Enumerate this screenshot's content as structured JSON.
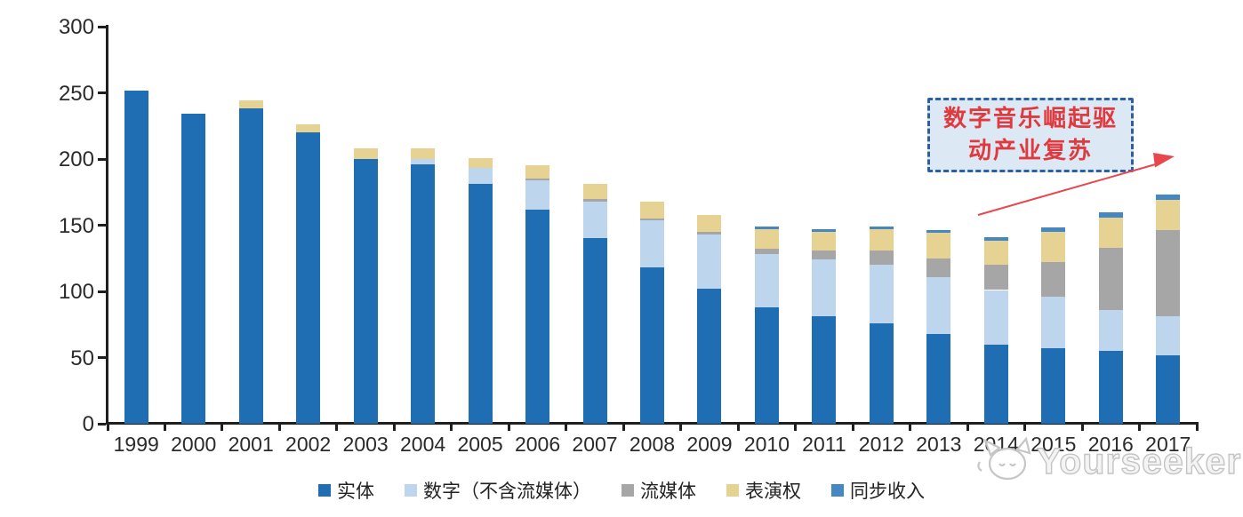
{
  "chart_data": {
    "type": "bar",
    "subtype": "stacked",
    "title": "",
    "xlabel": "",
    "ylabel": "",
    "ylim": [
      0,
      300
    ],
    "yticks": [
      0,
      50,
      100,
      150,
      200,
      250,
      300
    ],
    "grid": false,
    "legend_position": "bottom",
    "categories": [
      "1999",
      "2000",
      "2001",
      "2002",
      "2003",
      "2004",
      "2005",
      "2006",
      "2007",
      "2008",
      "2009",
      "2010",
      "2011",
      "2012",
      "2013",
      "2014",
      "2015",
      "2016",
      "2017"
    ],
    "series": [
      {
        "name": "实体",
        "color": "#1f6db3",
        "values": [
          252,
          234,
          238,
          220,
          200,
          196,
          181,
          162,
          140,
          118,
          102,
          88,
          81,
          76,
          68,
          60,
          57,
          55,
          52
        ]
      },
      {
        "name": "数字（不含流媒体）",
        "color": "#bdd6ee",
        "values": [
          0,
          0,
          0,
          0,
          0,
          4,
          12,
          22,
          28,
          36,
          41,
          40,
          43,
          44,
          43,
          41,
          39,
          31,
          29
        ]
      },
      {
        "name": "流媒体",
        "color": "#a6a6a6",
        "values": [
          0,
          0,
          0,
          0,
          0,
          0,
          0,
          1,
          2,
          1,
          2,
          4,
          7,
          11,
          14,
          19,
          26,
          47,
          65
        ]
      },
      {
        "name": "表演权",
        "color": "#e6d292",
        "values": [
          0,
          0,
          6,
          6,
          8,
          8,
          8,
          10,
          11,
          13,
          13,
          15,
          14,
          16,
          19,
          18,
          23,
          23,
          23
        ]
      },
      {
        "name": "同步收入",
        "color": "#4487c3",
        "values": [
          0,
          0,
          0,
          0,
          0,
          0,
          0,
          0,
          0,
          0,
          0,
          2,
          2,
          2,
          2,
          3,
          3,
          4,
          4
        ]
      }
    ]
  },
  "annotation": {
    "line1": "数字音乐崛起驱",
    "line2": "动产业复苏",
    "text_color": "#e03a3f",
    "box_border_color": "#2e5fa3",
    "box_fill_color": "#dce9f5",
    "arrow_color": "#e8474c"
  },
  "watermark": {
    "text": "Yourseeker",
    "logo": "cat-logo",
    "color": "#c4c4c4"
  },
  "axis": {
    "line_color": "#1f1f1f",
    "label_color": "#2b2b2b"
  }
}
